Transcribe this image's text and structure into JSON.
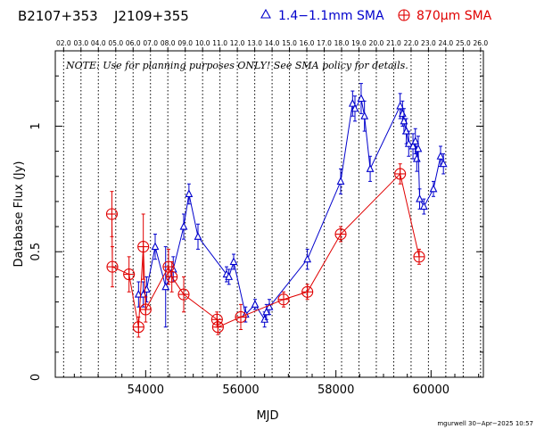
{
  "header": {
    "source_name": "B2107+353",
    "alt_name": "J2109+355",
    "legend_blue": "1.4−1.1mm SMA",
    "legend_red": "870μm SMA",
    "blue_color": "#0000cc",
    "red_color": "#e00000"
  },
  "note": "NOTE: Use for planning purposes ONLY!  See SMA policy for details.",
  "footer": {
    "stamp": "mgurwell 30−Apr−2025 10:57"
  },
  "chart_data": {
    "type": "scatter",
    "xlabel": "MJD",
    "ylabel": "Database Flux (Jy)",
    "xlim": [
      52100,
      61100
    ],
    "ylim": [
      0,
      1.3
    ],
    "x_ticks": [
      54000,
      56000,
      58000,
      60000
    ],
    "y_ticks": [
      0,
      0.5,
      1
    ],
    "y_tick_labels": [
      "0",
      "0.5",
      "1"
    ],
    "top_axis_labels": [
      "02.0",
      "03.0",
      "04.0",
      "05.0",
      "06.0",
      "07.0",
      "08.0",
      "09.0",
      "10.0",
      "11.0",
      "12.0",
      "13.0",
      "14.0",
      "15.0",
      "16.0",
      "17.0",
      "18.0",
      "19.0",
      "20.0",
      "21.0",
      "22.0",
      "23.0",
      "24.0",
      "25.0",
      "26.0"
    ],
    "top_axis_mjd": [
      52275,
      52640,
      53005,
      53371,
      53736,
      54101,
      54466,
      54832,
      55197,
      55562,
      55927,
      56293,
      56658,
      57023,
      57388,
      57754,
      58119,
      58484,
      58849,
      59215,
      59580,
      59945,
      60310,
      60676,
      61041
    ],
    "grid": "vertical dotted lines at year boundaries",
    "series": [
      {
        "name": "1.4−1.1mm SMA",
        "color": "#0000cc",
        "marker": "triangle",
        "connected": true,
        "points": [
          {
            "x": 53850,
            "y": 0.33,
            "err": 0.05
          },
          {
            "x": 53950,
            "y": 0.33,
            "err": 0.05
          },
          {
            "x": 54020,
            "y": 0.35,
            "err": 0.05
          },
          {
            "x": 54200,
            "y": 0.52,
            "err": 0.05
          },
          {
            "x": 54420,
            "y": 0.36,
            "err": 0.16
          },
          {
            "x": 54580,
            "y": 0.43,
            "err": 0.05
          },
          {
            "x": 54800,
            "y": 0.6,
            "err": 0.05
          },
          {
            "x": 54910,
            "y": 0.73,
            "err": 0.04
          },
          {
            "x": 55100,
            "y": 0.56,
            "err": 0.05
          },
          {
            "x": 55700,
            "y": 0.41,
            "err": 0.03
          },
          {
            "x": 55750,
            "y": 0.4,
            "err": 0.03
          },
          {
            "x": 55850,
            "y": 0.46,
            "err": 0.03
          },
          {
            "x": 56100,
            "y": 0.25,
            "err": 0.03
          },
          {
            "x": 56300,
            "y": 0.29,
            "err": 0.02
          },
          {
            "x": 56500,
            "y": 0.23,
            "err": 0.03
          },
          {
            "x": 56540,
            "y": 0.26,
            "err": 0.03
          },
          {
            "x": 56600,
            "y": 0.28,
            "err": 0.03
          },
          {
            "x": 57400,
            "y": 0.47,
            "err": 0.04
          },
          {
            "x": 58100,
            "y": 0.78,
            "err": 0.05
          },
          {
            "x": 58350,
            "y": 1.09,
            "err": 0.05
          },
          {
            "x": 58400,
            "y": 1.07,
            "err": 0.05
          },
          {
            "x": 58530,
            "y": 1.11,
            "err": 0.06
          },
          {
            "x": 58600,
            "y": 1.04,
            "err": 0.06
          },
          {
            "x": 58720,
            "y": 0.83,
            "err": 0.05
          },
          {
            "x": 59350,
            "y": 1.08,
            "err": 0.05
          },
          {
            "x": 59400,
            "y": 1.05,
            "err": 0.05
          },
          {
            "x": 59430,
            "y": 1.02,
            "err": 0.05
          },
          {
            "x": 59480,
            "y": 0.98,
            "err": 0.05
          },
          {
            "x": 59530,
            "y": 0.93,
            "err": 0.05
          },
          {
            "x": 59620,
            "y": 0.92,
            "err": 0.05
          },
          {
            "x": 59670,
            "y": 0.94,
            "err": 0.05
          },
          {
            "x": 59700,
            "y": 0.87,
            "err": 0.05
          },
          {
            "x": 59730,
            "y": 0.91,
            "err": 0.05
          },
          {
            "x": 59760,
            "y": 0.71,
            "err": 0.04
          },
          {
            "x": 59850,
            "y": 0.68,
            "err": 0.03
          },
          {
            "x": 60050,
            "y": 0.75,
            "err": 0.03
          },
          {
            "x": 60200,
            "y": 0.88,
            "err": 0.04
          },
          {
            "x": 60260,
            "y": 0.85,
            "err": 0.04
          }
        ]
      },
      {
        "name": "870μm SMA",
        "color": "#e00000",
        "marker": "circle-plus",
        "connected": true,
        "points": [
          {
            "x": 53290,
            "y": 0.65,
            "err": 0.09
          },
          {
            "x": 53300,
            "y": 0.44,
            "err": 0.08
          },
          {
            "x": 53650,
            "y": 0.41,
            "err": 0.07
          },
          {
            "x": 53850,
            "y": 0.2,
            "err": 0.04
          },
          {
            "x": 53950,
            "y": 0.52,
            "err": 0.13
          },
          {
            "x": 54000,
            "y": 0.27,
            "err": 0.05
          },
          {
            "x": 54480,
            "y": 0.44,
            "err": 0.07
          },
          {
            "x": 54550,
            "y": 0.4,
            "err": 0.06
          },
          {
            "x": 54800,
            "y": 0.33,
            "err": 0.07
          },
          {
            "x": 55500,
            "y": 0.23,
            "err": 0.03
          },
          {
            "x": 55520,
            "y": 0.2,
            "err": 0.03
          },
          {
            "x": 56000,
            "y": 0.24,
            "err": 0.05
          },
          {
            "x": 56900,
            "y": 0.31,
            "err": 0.03
          },
          {
            "x": 57400,
            "y": 0.34,
            "err": 0.03
          },
          {
            "x": 58100,
            "y": 0.57,
            "err": 0.03
          },
          {
            "x": 59350,
            "y": 0.81,
            "err": 0.04
          },
          {
            "x": 59750,
            "y": 0.48,
            "err": 0.03
          }
        ]
      }
    ]
  }
}
